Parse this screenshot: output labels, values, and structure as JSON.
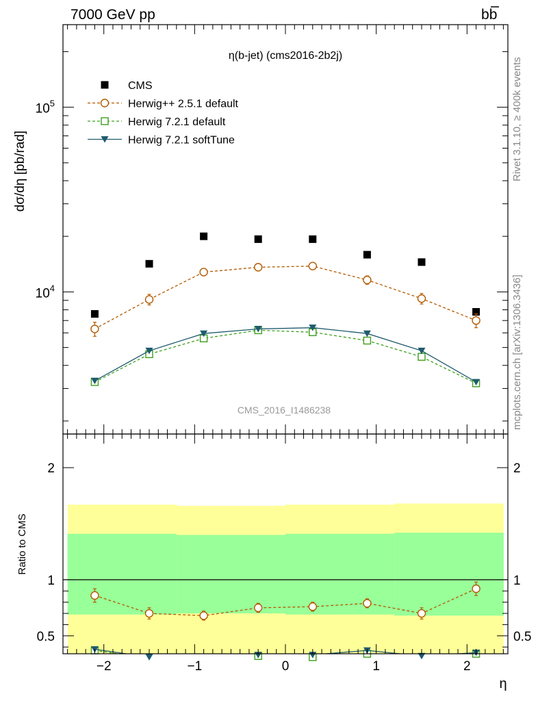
{
  "header": {
    "left": "7000 GeV pp",
    "right": "b",
    "right_bar": "b"
  },
  "side_labels": {
    "rivet": "Rivet 3.1.10, ≥ 400k events",
    "mcplots": "mcplots.cern.ch [arXiv:1306.3436]"
  },
  "watermark": "CMS_2016_I1486238",
  "colors": {
    "cms": "#000000",
    "herwigpp": "#b35900",
    "herwig721": "#3c9e1c",
    "softtune": "#1f5b6e",
    "band_outer": "#ffff99",
    "band_inner": "#99ff99"
  },
  "chart_data": [
    {
      "type": "scatter",
      "title": "η(b-jet) (cms2016-2b2j)",
      "ylabel": "dσ/dη [pb/rad]",
      "xlabel": "η",
      "xlim": [
        -2.45,
        2.45
      ],
      "ylim": [
        1700,
        280000
      ],
      "yscale": "log",
      "yticklabels": [
        "10^4",
        "10^5"
      ],
      "legend_position": "top-left",
      "x": [
        -2.1,
        -1.5,
        -0.9,
        -0.3,
        0.3,
        0.9,
        1.5,
        2.1
      ],
      "series": [
        {
          "name": "CMS",
          "key": "cms",
          "marker": "square-filled",
          "line": "none",
          "values": [
            7600,
            14200,
            20000,
            19300,
            19300,
            15900,
            14500,
            7800
          ]
        },
        {
          "name": "Herwig++ 2.5.1 default",
          "key": "herwigpp",
          "marker": "circle-open",
          "line": "dashed",
          "values": [
            6300,
            9100,
            12800,
            13600,
            13800,
            11600,
            9200,
            7000
          ],
          "errors": [
            550,
            600,
            550,
            600,
            600,
            600,
            600,
            600
          ]
        },
        {
          "name": "Herwig 7.2.1 default",
          "key": "herwig721",
          "marker": "square-open",
          "line": "dashed",
          "values": [
            3250,
            4600,
            5600,
            6200,
            6050,
            5450,
            4450,
            3200
          ]
        },
        {
          "name": "Herwig 7.2.1 softTune",
          "key": "softtune",
          "marker": "triangle-down-filled",
          "line": "solid",
          "values": [
            3300,
            4800,
            5950,
            6300,
            6400,
            5950,
            4800,
            3250
          ]
        }
      ]
    },
    {
      "type": "scatter",
      "ylabel": "Ratio to CMS",
      "xlabel": "η",
      "xlim": [
        -2.45,
        2.45
      ],
      "ylim": [
        0.34,
        2.3
      ],
      "yticklabels": [
        "0.5",
        "1",
        "2"
      ],
      "bands": {
        "x_edges": [
          -2.4,
          -1.2,
          0,
          1.2,
          2.4
        ],
        "outer_lo": [
          0.3,
          0.3,
          0.3,
          0.3
        ],
        "outer_hi": [
          1.67,
          1.66,
          1.67,
          1.68
        ],
        "inner_lo": [
          0.69,
          0.7,
          0.69,
          0.68
        ],
        "inner_hi": [
          1.41,
          1.4,
          1.41,
          1.42
        ]
      },
      "reference_line": 1,
      "x": [
        -2.1,
        -1.5,
        -0.9,
        -0.3,
        0.3,
        0.9,
        1.5,
        2.1
      ],
      "series": [
        {
          "name": "Herwig++ 2.5.1 default",
          "key": "herwigpp",
          "marker": "circle-open",
          "line": "dashed",
          "values": [
            0.86,
            0.7,
            0.68,
            0.75,
            0.76,
            0.79,
            0.7,
            0.92
          ],
          "errors": [
            0.06,
            0.05,
            0.04,
            0.04,
            0.04,
            0.04,
            0.05,
            0.06
          ]
        },
        {
          "name": "Herwig 7.2.1 default",
          "key": "herwig721",
          "marker": "square-open",
          "line": "dashed",
          "values": [
            0.37,
            0.3,
            0.28,
            0.32,
            0.31,
            0.34,
            0.3,
            0.34
          ]
        },
        {
          "name": "Herwig 7.2.1 softTune",
          "key": "softtune",
          "marker": "triangle-down-filled",
          "line": "solid",
          "values": [
            0.38,
            0.31,
            0.29,
            0.33,
            0.33,
            0.37,
            0.32,
            0.35
          ]
        }
      ]
    }
  ]
}
